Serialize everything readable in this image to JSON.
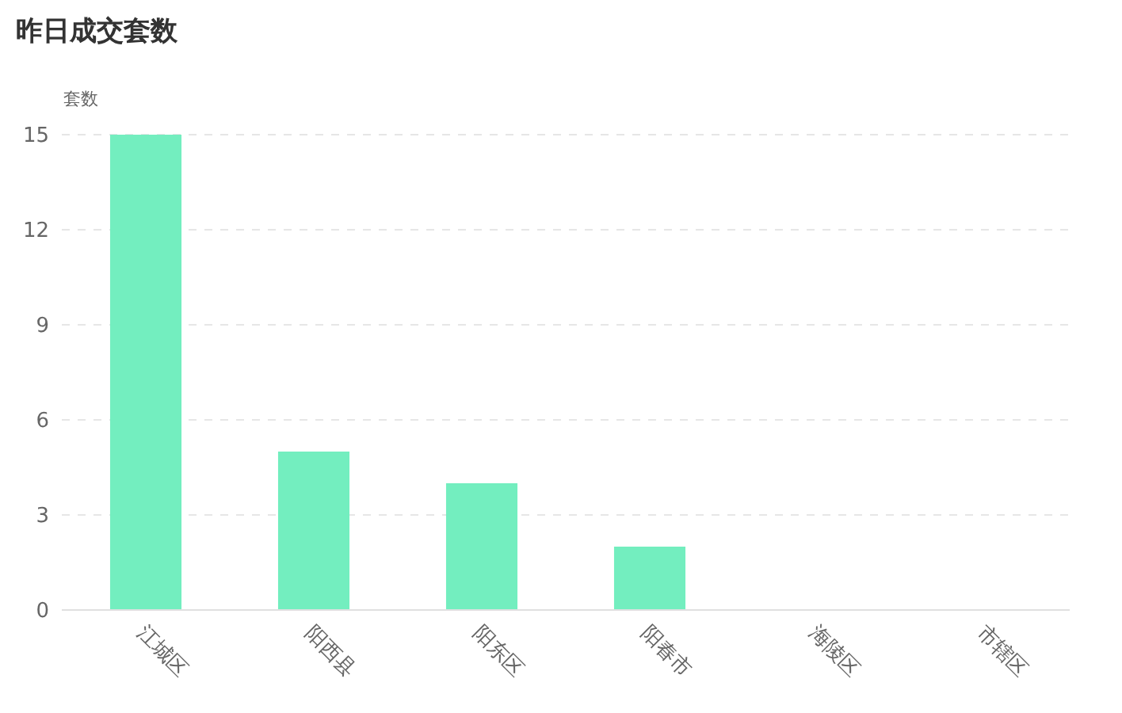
{
  "chart_data": {
    "type": "bar",
    "title": "昨日成交套数",
    "ylabel": "套数",
    "categories": [
      "江城区",
      "阳西县",
      "阳东区",
      "阳春市",
      "海陵区",
      "市辖区"
    ],
    "values": [
      15,
      5,
      4,
      2,
      0,
      0
    ],
    "color": "#73eebf",
    "ylim": [
      0,
      15
    ],
    "yticks": [
      0,
      3,
      6,
      9,
      12,
      15
    ],
    "grid": "y"
  }
}
